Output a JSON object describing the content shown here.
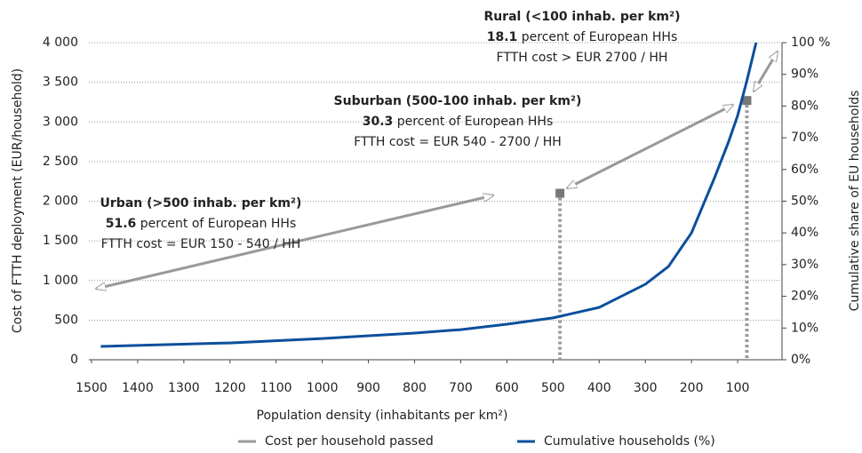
{
  "chart_data": {
    "type": "line",
    "xlabel": "Population density (inhabitants per km²)",
    "ylabel": "Cost of FTTH deployment (EUR/household)",
    "y2label": "Cumulative share of EU households",
    "xlim": [
      1500,
      0
    ],
    "xticks": [
      1500,
      1400,
      1300,
      1200,
      1100,
      1000,
      900,
      800,
      700,
      600,
      500,
      400,
      300,
      200,
      100
    ],
    "ylim": [
      0,
      4000
    ],
    "yticks": [
      0,
      500,
      {
        "value": 1000,
        "label": "1 000"
      },
      {
        "value": 1500,
        "label": "1 500"
      },
      {
        "value": 2000,
        "label": "2 000"
      },
      {
        "value": 2500,
        "label": "2 500"
      },
      {
        "value": 3000,
        "label": "3 000"
      },
      {
        "value": 3500,
        "label": "3 500"
      },
      {
        "value": 4000,
        "label": "4 000"
      }
    ],
    "y2lim": [
      0,
      100
    ],
    "y2ticks": [
      {
        "value": 0,
        "label": "0%"
      },
      {
        "value": 10,
        "label": "10%"
      },
      {
        "value": 20,
        "label": "20%"
      },
      {
        "value": 30,
        "label": "30%"
      },
      {
        "value": 40,
        "label": "40%"
      },
      {
        "value": 50,
        "label": "50%"
      },
      {
        "value": 60,
        "label": "60%"
      },
      {
        "value": 70,
        "label": "70%"
      },
      {
        "value": 80,
        "label": "80%"
      },
      {
        "value": 90,
        "label": "90%"
      },
      {
        "value": 100,
        "label": "100 %"
      }
    ],
    "grid": true,
    "series": [
      {
        "name": "Cost per household passed",
        "color": "#999999",
        "x": [
          485,
          80
        ],
        "values": [
          2100,
          3270
        ]
      },
      {
        "name": "Cumulative households (%)",
        "color": "#0b4f9c",
        "axis": "y2",
        "x": [
          1480,
          1200,
          1000,
          800,
          700,
          600,
          500,
          400,
          300,
          250,
          200,
          150,
          120,
          100,
          80,
          60
        ],
        "values": [
          4.2,
          5.3,
          6.7,
          8.4,
          9.5,
          11.2,
          13.2,
          16.5,
          23.8,
          29.4,
          40,
          57.4,
          68.6,
          77,
          88,
          100
        ]
      }
    ],
    "annotations": [
      {
        "title": "Urban (>500 inhab. per km²)",
        "share": 51.6,
        "share_text": "percent of  European HHs",
        "cost": "FTTH cost = EUR 150 - 540 / HH"
      },
      {
        "title": "Suburban (500-100 inhab. per km²)",
        "share": 30.3,
        "share_text": "percent of European HHs",
        "cost": "FTTH cost = EUR 540 - 2700 / HH"
      },
      {
        "title": "Rural (<100 inhab. per km²)",
        "share": 18.1,
        "share_text": "percent of European HHs",
        "cost": "FTTH cost  > EUR 2700 / HH"
      }
    ]
  }
}
